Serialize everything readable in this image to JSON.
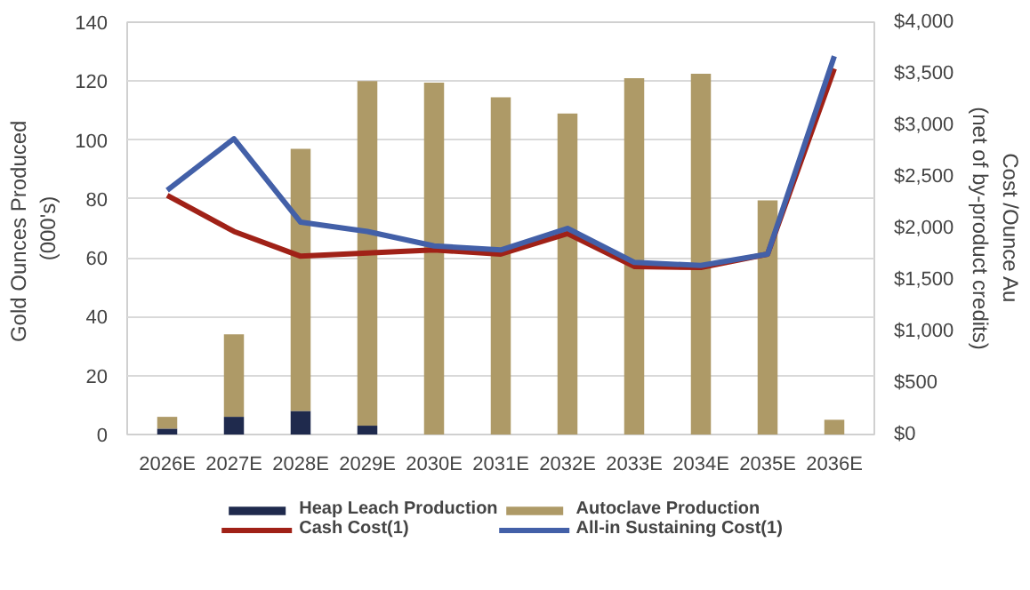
{
  "chart_data": {
    "type": "bar",
    "stacked": true,
    "categories": [
      "2026E",
      "2027E",
      "2028E",
      "2029E",
      "2030E",
      "2031E",
      "2032E",
      "2033E",
      "2034E",
      "2035E",
      "2036E"
    ],
    "ylabel": "Gold  Ounces Produced\n(000's)",
    "y2label": "Cost /Ounce Au\n(net of by-product credits)",
    "ylim": [
      0,
      140
    ],
    "yticks": [
      0,
      20,
      40,
      60,
      80,
      100,
      120,
      140
    ],
    "y2lim": [
      0,
      4000
    ],
    "y2ticks": [
      {
        "value": 0,
        "label": "$0"
      },
      {
        "value": 500,
        "label": "$500"
      },
      {
        "value": 1000,
        "label": "$1,000"
      },
      {
        "value": 1500,
        "label": "$1,500"
      },
      {
        "value": 2000,
        "label": "$2,000"
      },
      {
        "value": 2500,
        "label": "$2,500"
      },
      {
        "value": 3000,
        "label": "$3,000"
      },
      {
        "value": 3500,
        "label": "$3,500"
      },
      {
        "value": 4000,
        "label": "$4,000"
      }
    ],
    "grid": "y",
    "legend": "bottom",
    "series": [
      {
        "name": "Heap Leach Production",
        "color": "#1f2a4d",
        "values": [
          2,
          6,
          8,
          3,
          0,
          0,
          0,
          0,
          0,
          0,
          0
        ]
      },
      {
        "name": "Autoclave Production",
        "color": "#ae9a67",
        "values": [
          4,
          28,
          89,
          117,
          119.5,
          114.5,
          109,
          121,
          122.5,
          79.5,
          5
        ]
      },
      {
        "name": "Cash Cost(1)",
        "type": "line",
        "axis": "y2",
        "color": "#a02117",
        "values": [
          2320,
          1970,
          1730,
          1760,
          1790,
          1750,
          1950,
          1630,
          1620,
          1750,
          3550
        ]
      },
      {
        "name": "All-in Sustaining Cost(1)",
        "type": "line",
        "axis": "y2",
        "color": "#4360a8",
        "values": [
          2370,
          2870,
          2060,
          1970,
          1830,
          1790,
          2000,
          1670,
          1640,
          1750,
          3670
        ]
      }
    ]
  }
}
